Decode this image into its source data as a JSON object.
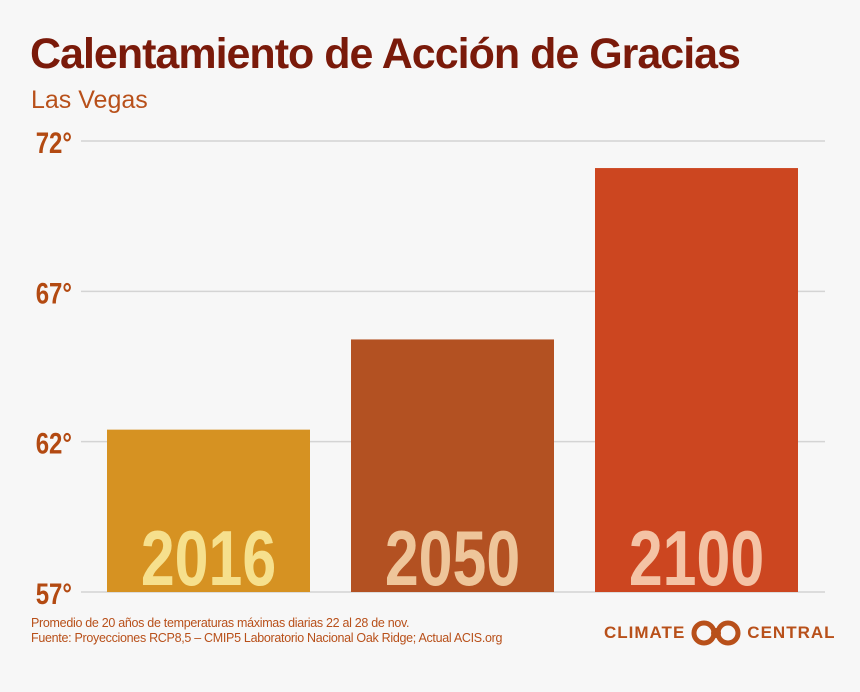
{
  "title": "Calentamiento de Acción de Gracias",
  "subtitle": "Las Vegas",
  "chart_data": {
    "type": "bar",
    "categories": [
      "2016",
      "2050",
      "2100"
    ],
    "values": [
      62.4,
      65.4,
      71.1
    ],
    "colors": [
      "#d69222",
      "#b35122",
      "#cc4620"
    ],
    "label_colors": [
      "#f6e08d",
      "#eec59a",
      "#f4c3a5"
    ],
    "ylim": [
      57,
      72
    ],
    "yticks": [
      57,
      62,
      67,
      72
    ],
    "ytick_labels": [
      "57°",
      "62°",
      "67°",
      "72°"
    ],
    "grid": true,
    "xlabel": "",
    "ylabel": ""
  },
  "footnotes": [
    "Promedio de 20 años de temperaturas máximas diarias 22 al 28 de nov.",
    "Fuente: Proyecciones RCP8,5 – CMIP5 Laboratorio Nacional Oak Ridge; Actual ACIS.org"
  ],
  "logo": {
    "left": "CLIMATE",
    "right": "CENTRAL",
    "color": "#b8501a"
  }
}
